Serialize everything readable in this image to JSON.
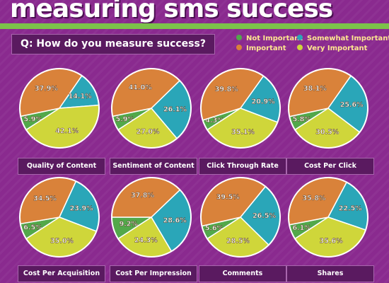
{
  "title": "measuring sms success",
  "question": "Q: How do you measure success?",
  "colors": {
    "not_important": "#52a84a",
    "important": "#d9823a",
    "somewhat_important": "#2aa6b8",
    "very_important": "#cfd63a"
  },
  "legend": [
    {
      "label": "Not Important",
      "color": "#52a84a"
    },
    {
      "label": "Somewhat Important",
      "color": "#2aa6b8"
    },
    {
      "label": "Important",
      "color": "#d9823a"
    },
    {
      "label": "Very Important",
      "color": "#cfd63a"
    }
  ],
  "chart_data": [
    {
      "type": "pie",
      "title": "Quality of Content",
      "categories": [
        "Not Important",
        "Important",
        "Somewhat Important",
        "Very Important"
      ],
      "values": [
        5.9,
        37.9,
        14.1,
        42.1
      ],
      "labels": [
        "5.9%",
        "37.9%",
        "14.1%",
        "42.1%"
      ]
    },
    {
      "type": "pie",
      "title": "Sentiment of Content",
      "categories": [
        "Not Important",
        "Important",
        "Somewhat Important",
        "Very Important"
      ],
      "values": [
        5.9,
        41.0,
        26.1,
        27.0
      ],
      "labels": [
        "5.9%",
        "41.0%",
        "26.1%",
        "27.0%"
      ]
    },
    {
      "type": "pie",
      "title": "Click Through Rate",
      "categories": [
        "Not Important",
        "Important",
        "Somewhat Important",
        "Very Important"
      ],
      "values": [
        4.3,
        39.8,
        20.9,
        35.1
      ],
      "labels": [
        "4.3%",
        "39.8%",
        "20.9%",
        "35.1%"
      ]
    },
    {
      "type": "pie",
      "title": "Cost Per Click",
      "categories": [
        "Not Important",
        "Important",
        "Somewhat Important",
        "Very Important"
      ],
      "values": [
        5.8,
        38.1,
        25.6,
        30.5
      ],
      "labels": [
        "5.8%",
        "38.1%",
        "25.6%",
        "30.5%"
      ]
    },
    {
      "type": "pie",
      "title": "Cost Per Acquisition",
      "categories": [
        "Not Important",
        "Important",
        "Somewhat Important",
        "Very Important"
      ],
      "values": [
        6.5,
        34.5,
        23.9,
        35.0
      ],
      "labels": [
        "6.5%",
        "34.5%",
        "23.9%",
        "35.0%"
      ]
    },
    {
      "type": "pie",
      "title": "Cost Per Impression",
      "categories": [
        "Not Important",
        "Important",
        "Somewhat Important",
        "Very Important"
      ],
      "values": [
        9.2,
        37.8,
        28.6,
        24.3
      ],
      "labels": [
        "9.2%",
        "37.8%",
        "28.6%",
        "24.3%"
      ]
    },
    {
      "type": "pie",
      "title": "Comments",
      "categories": [
        "Not Important",
        "Important",
        "Somewhat Important",
        "Very Important"
      ],
      "values": [
        5.6,
        39.5,
        26.5,
        28.5
      ],
      "labels": [
        "5.6%",
        "39.5%",
        "26.5%",
        "28.5%"
      ]
    },
    {
      "type": "pie",
      "title": "Shares",
      "categories": [
        "Not Important",
        "Important",
        "Somewhat Important",
        "Very Important"
      ],
      "values": [
        6.1,
        35.8,
        22.5,
        35.6
      ],
      "labels": [
        "6.1%",
        "35.8%",
        "22.5%",
        "35.6%"
      ]
    }
  ]
}
